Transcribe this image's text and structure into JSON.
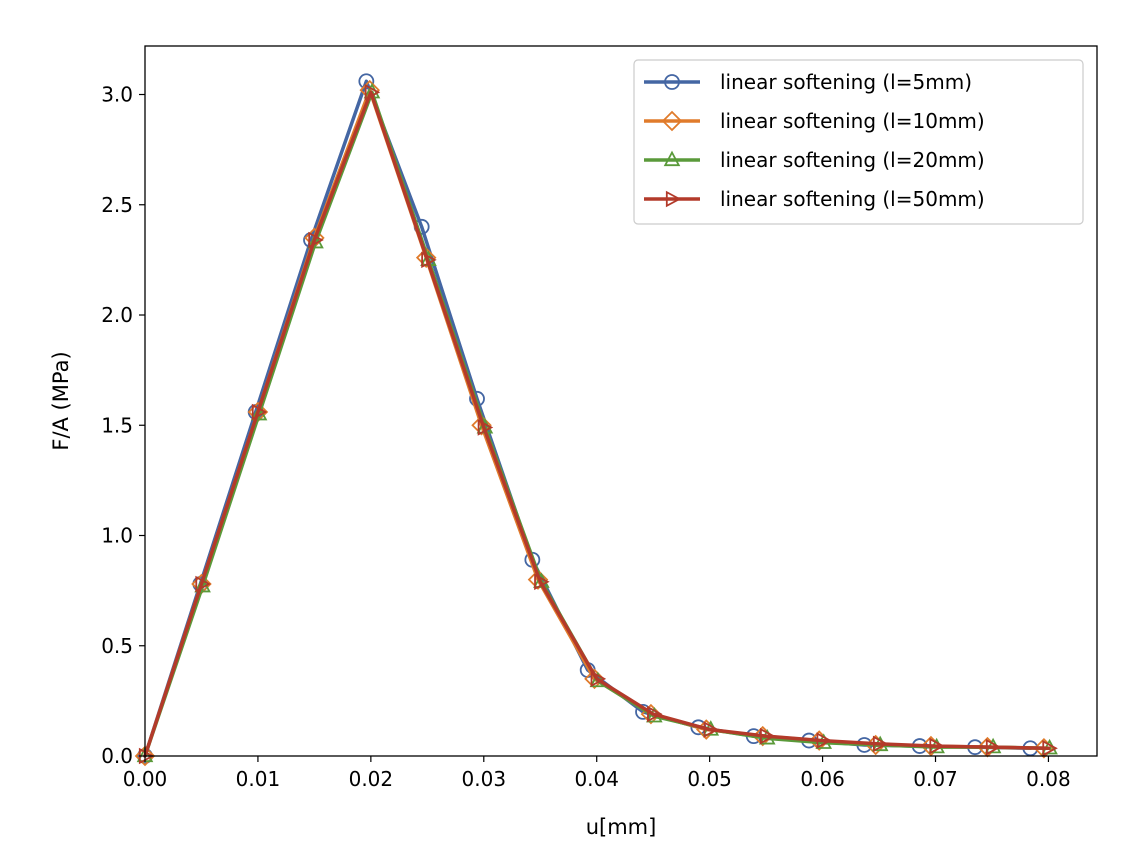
{
  "chart_data": {
    "type": "line",
    "title": "",
    "xlabel": "u[mm]",
    "ylabel": "F/A (MPa)",
    "xlim": [
      0.0,
      0.0843
    ],
    "ylim": [
      0.0,
      3.22
    ],
    "x_ticks": [
      0.0,
      0.01,
      0.02,
      0.03,
      0.04,
      0.05,
      0.06,
      0.07,
      0.08
    ],
    "x_tick_labels": [
      "0.00",
      "0.01",
      "0.02",
      "0.03",
      "0.04",
      "0.05",
      "0.06",
      "0.07",
      "0.08"
    ],
    "y_ticks": [
      0.0,
      0.5,
      1.0,
      1.5,
      2.0,
      2.5,
      3.0
    ],
    "y_tick_labels": [
      "0.0",
      "0.5",
      "1.0",
      "1.5",
      "2.0",
      "2.5",
      "3.0"
    ],
    "grid": false,
    "legend_position": "top-right",
    "series": [
      {
        "name": "linear softening (l=5mm)",
        "color": "#4466a3",
        "marker": "circle",
        "x": [
          0.0,
          0.0049,
          0.0098,
          0.0147,
          0.0196,
          0.0245,
          0.0294,
          0.0343,
          0.0392,
          0.0441,
          0.049,
          0.0539,
          0.0588,
          0.0637,
          0.0686,
          0.0735,
          0.0784
        ],
        "y": [
          0.0,
          0.78,
          1.56,
          2.34,
          3.06,
          2.4,
          1.62,
          0.89,
          0.39,
          0.2,
          0.13,
          0.09,
          0.07,
          0.05,
          0.045,
          0.04,
          0.035
        ]
      },
      {
        "name": "linear softening (l=10mm)",
        "color": "#e07b2b",
        "marker": "diamond",
        "x": [
          0.0,
          0.005,
          0.01,
          0.015,
          0.0199,
          0.0249,
          0.0298,
          0.0348,
          0.0398,
          0.0448,
          0.0497,
          0.0547,
          0.0597,
          0.0647,
          0.0696,
          0.0746,
          0.0796
        ],
        "y": [
          0.0,
          0.78,
          1.56,
          2.35,
          3.02,
          2.26,
          1.5,
          0.8,
          0.35,
          0.19,
          0.12,
          0.09,
          0.07,
          0.05,
          0.045,
          0.04,
          0.035
        ]
      },
      {
        "name": "linear softening (l=20mm)",
        "color": "#5a9a3a",
        "marker": "triangle-up",
        "x": [
          0.0,
          0.0051,
          0.0101,
          0.0151,
          0.0201,
          0.0251,
          0.0301,
          0.0351,
          0.0401,
          0.0451,
          0.0501,
          0.0551,
          0.0601,
          0.0651,
          0.0701,
          0.0751,
          0.0801
        ],
        "y": [
          0.0,
          0.77,
          1.55,
          2.33,
          3.01,
          2.25,
          1.49,
          0.79,
          0.34,
          0.18,
          0.12,
          0.08,
          0.06,
          0.05,
          0.04,
          0.04,
          0.035
        ]
      },
      {
        "name": "linear softening (l=50mm)",
        "color": "#b33a2a",
        "marker": "triangle-right",
        "x": [
          0.0,
          0.005,
          0.01,
          0.015,
          0.02,
          0.025,
          0.03,
          0.035,
          0.04,
          0.045,
          0.05,
          0.055,
          0.06,
          0.065,
          0.07,
          0.075,
          0.08
        ],
        "y": [
          0.0,
          0.78,
          1.56,
          2.34,
          3.01,
          2.25,
          1.49,
          0.79,
          0.35,
          0.19,
          0.12,
          0.09,
          0.07,
          0.055,
          0.045,
          0.04,
          0.035
        ]
      }
    ]
  }
}
